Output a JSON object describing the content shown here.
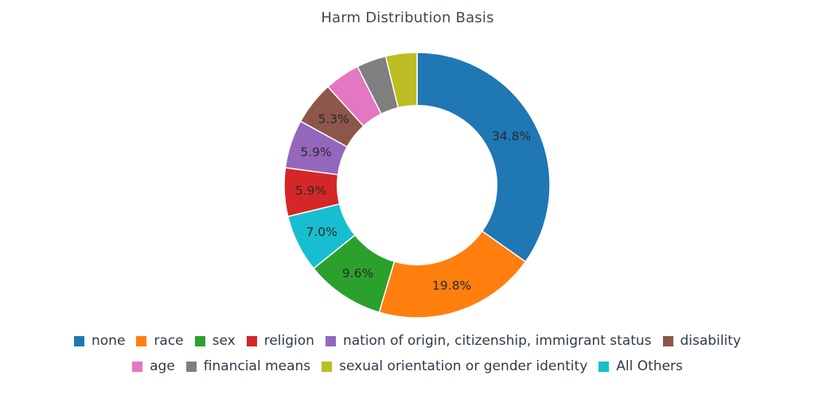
{
  "chart_data": {
    "type": "pie",
    "title": "Harm Distribution Basis",
    "hole": 0.6,
    "slices": [
      {
        "label": "none",
        "value": 34.8,
        "display": "34.8%",
        "color": "#1f77b4"
      },
      {
        "label": "race",
        "value": 19.8,
        "display": "19.8%",
        "color": "#ff7f0e"
      },
      {
        "label": "sex",
        "value": 9.6,
        "display": "9.6%",
        "color": "#2ca02c"
      },
      {
        "label": "All Others",
        "value": 7.0,
        "display": "7.0%",
        "color": "#17becf"
      },
      {
        "label": "religion",
        "value": 5.9,
        "display": "5.9%",
        "color": "#d62728"
      },
      {
        "label": "nation of origin, citizenship, immigrant status",
        "value": 5.9,
        "display": "5.9%",
        "color": "#9467bd"
      },
      {
        "label": "disability",
        "value": 5.3,
        "display": "5.3%",
        "color": "#8c564b"
      },
      {
        "label": "age",
        "value": 4.3,
        "display": "",
        "color": "#e377c2"
      },
      {
        "label": "financial means",
        "value": 3.6,
        "display": "",
        "color": "#7f7f7f"
      },
      {
        "label": "sexual orientation or gender identity",
        "value": 3.8,
        "display": "",
        "color": "#bcbd22"
      }
    ],
    "legend": {
      "placement": "bottom",
      "rows": [
        [
          {
            "label": "none",
            "color": "#1f77b4"
          },
          {
            "label": "race",
            "color": "#ff7f0e"
          },
          {
            "label": "sex",
            "color": "#2ca02c"
          },
          {
            "label": "religion",
            "color": "#d62728"
          },
          {
            "label": "nation of origin, citizenship, immigrant status",
            "color": "#9467bd"
          },
          {
            "label": "disability",
            "color": "#8c564b"
          }
        ],
        [
          {
            "label": "age",
            "color": "#e377c2"
          },
          {
            "label": "financial means",
            "color": "#7f7f7f"
          },
          {
            "label": "sexual orientation or gender identity",
            "color": "#bcbd22"
          },
          {
            "label": "All Others",
            "color": "#17becf"
          }
        ]
      ]
    }
  }
}
